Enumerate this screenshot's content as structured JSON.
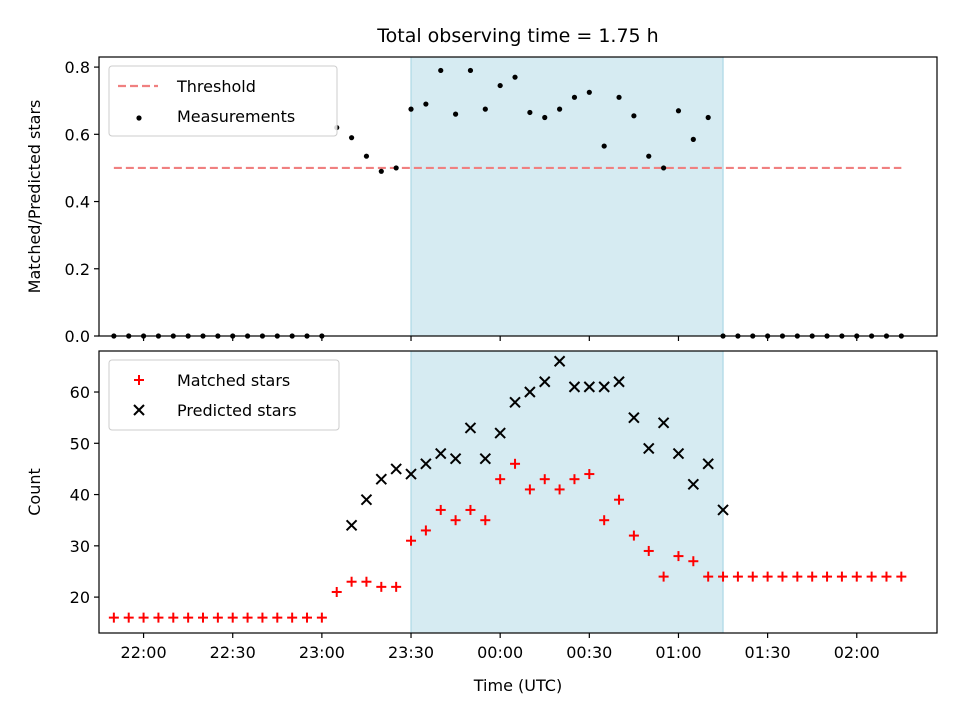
{
  "chart_data": {
    "title": "Total observing time = 1.75 h",
    "xlabel": "Time (UTC)",
    "x_ticks": [
      "22:00",
      "22:30",
      "23:00",
      "23:30",
      "00:00",
      "00:30",
      "01:00",
      "01:30",
      "02:00"
    ],
    "x_tick_minutes": [
      0,
      30,
      60,
      90,
      120,
      150,
      180,
      210,
      240
    ],
    "x_range": [
      "21:45",
      "02:27"
    ],
    "observing_window": [
      "23:30",
      "01:15"
    ],
    "colors": {
      "threshold": "#f08080",
      "matched": "#ff0000",
      "predicted": "#000000",
      "measurement": "#000000",
      "window": "#add8e6"
    },
    "panels": [
      {
        "type": "scatter",
        "ylabel": "Matched/Predicted stars",
        "ylim": [
          0,
          0.83
        ],
        "y_ticks": [
          "0.0",
          "0.2",
          "0.4",
          "0.6",
          "0.8"
        ],
        "y_tick_values": [
          0,
          0.2,
          0.4,
          0.6,
          0.8
        ],
        "legend_position": "top-left",
        "threshold": {
          "name": "Threshold",
          "value": 0.5,
          "x_range": [
            "21:50",
            "02:15"
          ]
        },
        "series": [
          {
            "name": "Measurements",
            "x": [
              "21:50",
              "21:55",
              "22:00",
              "22:05",
              "22:10",
              "22:15",
              "22:20",
              "22:25",
              "22:30",
              "22:35",
              "22:40",
              "22:45",
              "22:50",
              "22:55",
              "23:00",
              "23:05",
              "23:10",
              "23:15",
              "23:20",
              "23:25",
              "23:30",
              "23:35",
              "23:40",
              "23:45",
              "23:50",
              "23:55",
              "00:00",
              "00:05",
              "00:10",
              "00:15",
              "00:20",
              "00:25",
              "00:30",
              "00:35",
              "00:40",
              "00:45",
              "00:50",
              "00:55",
              "01:00",
              "01:05",
              "01:10",
              "01:15",
              "01:20",
              "01:25",
              "01:30",
              "01:35",
              "01:40",
              "01:45",
              "01:50",
              "01:55",
              "02:00",
              "02:05",
              "02:10",
              "02:15"
            ],
            "y": [
              0,
              0,
              0,
              0,
              0,
              0,
              0,
              0,
              0,
              0,
              0,
              0,
              0,
              0,
              0,
              0.62,
              0.59,
              0.535,
              0.49,
              0.5,
              0.675,
              0.69,
              0.79,
              0.66,
              0.79,
              0.675,
              0.745,
              0.77,
              0.665,
              0.65,
              0.675,
              0.71,
              0.725,
              0.565,
              0.71,
              0.655,
              0.535,
              0.5,
              0.67,
              0.585,
              0.65,
              0,
              0,
              0,
              0,
              0,
              0,
              0,
              0,
              0,
              0,
              0,
              0,
              0
            ]
          }
        ]
      },
      {
        "type": "scatter",
        "ylabel": "Count",
        "ylim": [
          13,
          68
        ],
        "y_ticks": [
          "20",
          "30",
          "40",
          "50",
          "60"
        ],
        "y_tick_values": [
          20,
          30,
          40,
          50,
          60
        ],
        "legend_position": "top-left",
        "series": [
          {
            "name": "Matched stars",
            "marker": "plus",
            "x": [
              "21:50",
              "21:55",
              "22:00",
              "22:05",
              "22:10",
              "22:15",
              "22:20",
              "22:25",
              "22:30",
              "22:35",
              "22:40",
              "22:45",
              "22:50",
              "22:55",
              "23:00",
              "23:05",
              "23:10",
              "23:15",
              "23:20",
              "23:25",
              "23:30",
              "23:35",
              "23:40",
              "23:45",
              "23:50",
              "23:55",
              "00:00",
              "00:05",
              "00:10",
              "00:15",
              "00:20",
              "00:25",
              "00:30",
              "00:35",
              "00:40",
              "00:45",
              "00:50",
              "00:55",
              "01:00",
              "01:05",
              "01:10",
              "01:15",
              "01:20",
              "01:25",
              "01:30",
              "01:35",
              "01:40",
              "01:45",
              "01:50",
              "01:55",
              "02:00",
              "02:05",
              "02:10",
              "02:15"
            ],
            "y": [
              16,
              16,
              16,
              16,
              16,
              16,
              16,
              16,
              16,
              16,
              16,
              16,
              16,
              16,
              16,
              21,
              23,
              23,
              22,
              22,
              31,
              33,
              37,
              35,
              37,
              35,
              43,
              46,
              41,
              43,
              41,
              43,
              44,
              35,
              39,
              32,
              29,
              24,
              28,
              27,
              24,
              24,
              24,
              24,
              24,
              24,
              24,
              24,
              24,
              24,
              24,
              24,
              24,
              24
            ]
          },
          {
            "name": "Predicted stars",
            "marker": "x",
            "x": [
              "23:10",
              "23:15",
              "23:20",
              "23:25",
              "23:30",
              "23:35",
              "23:40",
              "23:45",
              "23:50",
              "23:55",
              "00:00",
              "00:05",
              "00:10",
              "00:15",
              "00:20",
              "00:25",
              "00:30",
              "00:35",
              "00:40",
              "00:45",
              "00:50",
              "00:55",
              "01:00",
              "01:05",
              "01:10",
              "01:15"
            ],
            "y": [
              34,
              39,
              43,
              45,
              44,
              46,
              48,
              47,
              53,
              47,
              52,
              58,
              60,
              62,
              66,
              61,
              61,
              61,
              62,
              55,
              49,
              54,
              48,
              42,
              46,
              37
            ]
          }
        ]
      }
    ]
  }
}
